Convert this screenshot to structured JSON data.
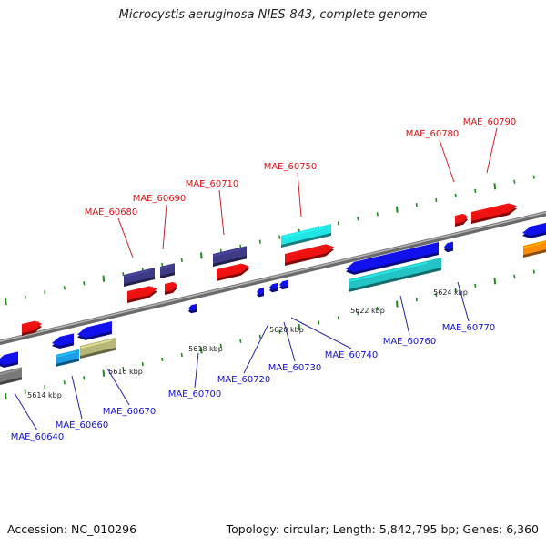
{
  "title": "Microcystis aeruginosa NIES-843, complete genome",
  "accession": "Accession: NC_010296",
  "summary": "Topology: circular; Length: 5,842,795 bp; Genes: 6,360",
  "colors": {
    "background": "#ffffff",
    "backbone": "#8a8a8a",
    "tick": "#1f8a1f",
    "label_top": "#dd1111",
    "label_bottom": "#1111cc",
    "leader_top": "#cc2222",
    "leader_bottom": "#2222aa"
  },
  "kbp_marks": [
    "5614 kbp",
    "5616 kbp",
    "5618 kbp",
    "5620 kbp",
    "5622 kbp",
    "5624 kbp"
  ],
  "genes_top": [
    {
      "name": "MAE_60680"
    },
    {
      "name": "MAE_60690"
    },
    {
      "name": "MAE_60710"
    },
    {
      "name": "MAE_60750"
    },
    {
      "name": "MAE_60780"
    },
    {
      "name": "MAE_60790"
    }
  ],
  "genes_bottom": [
    {
      "name": "MAE_60640"
    },
    {
      "name": "MAE_60660"
    },
    {
      "name": "MAE_60670"
    },
    {
      "name": "MAE_60700"
    },
    {
      "name": "MAE_60720"
    },
    {
      "name": "MAE_60730"
    },
    {
      "name": "MAE_60740"
    },
    {
      "name": "MAE_60760"
    },
    {
      "name": "MAE_60770"
    }
  ]
}
